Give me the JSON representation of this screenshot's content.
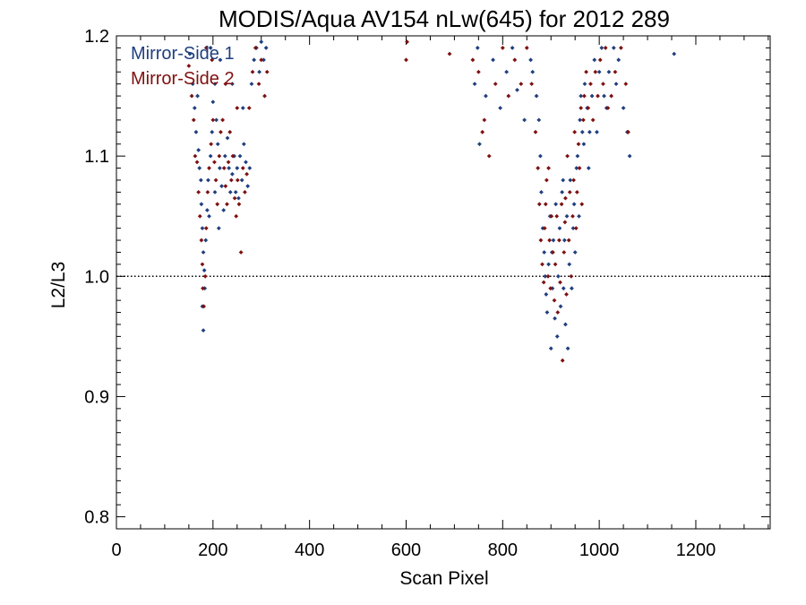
{
  "chart_data": {
    "type": "scatter",
    "title": "MODIS/Aqua AV154 nLw(645) for 2012 289",
    "xlabel": "Scan Pixel",
    "ylabel": "L2/L3",
    "xlim": [
      0,
      1354
    ],
    "ylim": [
      0.79,
      1.2
    ],
    "xticks": [
      0,
      200,
      400,
      600,
      800,
      1000,
      1200
    ],
    "xtick_labels": [
      "0",
      "200",
      "400",
      "600",
      "800",
      "1000",
      "1200"
    ],
    "yticks": [
      0.8,
      0.9,
      1.0,
      1.1,
      1.2
    ],
    "ytick_labels": [
      "0.8",
      "0.9",
      "1.0",
      "1.1",
      "1.2"
    ],
    "reference_line": 1.0,
    "legend_position": "top-left",
    "colors": {
      "ms1": "#1f3f7f",
      "ms2": "#7f1010"
    },
    "series": [
      {
        "name": "Mirror-Side 1",
        "points": [
          [
            152,
            1.185
          ],
          [
            158,
            1.16
          ],
          [
            162,
            1.14
          ],
          [
            165,
            1.12
          ],
          [
            170,
            1.105
          ],
          [
            172,
            1.09
          ],
          [
            175,
            1.08
          ],
          [
            176,
            1.06
          ],
          [
            178,
            1.04
          ],
          [
            180,
            1.02
          ],
          [
            182,
            1.005
          ],
          [
            183,
            0.99
          ],
          [
            178,
            0.975
          ],
          [
            180,
            0.955
          ],
          [
            185,
            1.03
          ],
          [
            188,
            1.055
          ],
          [
            190,
            1.08
          ],
          [
            195,
            1.1
          ],
          [
            198,
            1.12
          ],
          [
            200,
            1.145
          ],
          [
            204,
            1.16
          ],
          [
            207,
            1.13
          ],
          [
            210,
            1.11
          ],
          [
            214,
            1.09
          ],
          [
            218,
            1.075
          ],
          [
            222,
            1.055
          ],
          [
            225,
            1.1
          ],
          [
            230,
            1.115
          ],
          [
            233,
            1.09
          ],
          [
            236,
            1.07
          ],
          [
            240,
            1.085
          ],
          [
            244,
            1.1
          ],
          [
            247,
            1.07
          ],
          [
            250,
            1.09
          ],
          [
            253,
            1.065
          ],
          [
            256,
            1.1
          ],
          [
            260,
            1.08
          ],
          [
            264,
            1.11
          ],
          [
            268,
            1.095
          ],
          [
            272,
            1.075
          ],
          [
            276,
            1.09
          ],
          [
            280,
            1.16
          ],
          [
            285,
            1.18
          ],
          [
            290,
            1.19
          ],
          [
            296,
            1.17
          ],
          [
            300,
            1.195
          ],
          [
            305,
            1.18
          ],
          [
            310,
            1.19
          ],
          [
            168,
            1.15
          ],
          [
            195,
            1.19
          ],
          [
            215,
            1.18
          ],
          [
            240,
            1.16
          ],
          [
            262,
            1.14
          ],
          [
            204,
            1.07
          ],
          [
            212,
            1.04
          ],
          [
            192,
            1.05
          ],
          [
            742,
            1.16
          ],
          [
            748,
            1.19
          ],
          [
            752,
            1.11
          ],
          [
            765,
            1.15
          ],
          [
            780,
            1.18
          ],
          [
            795,
            1.14
          ],
          [
            808,
            1.17
          ],
          [
            820,
            1.19
          ],
          [
            830,
            1.155
          ],
          [
            845,
            1.13
          ],
          [
            858,
            1.18
          ],
          [
            862,
            1.17
          ],
          [
            870,
            1.15
          ],
          [
            875,
            1.13
          ],
          [
            878,
            1.1
          ],
          [
            880,
            1.07
          ],
          [
            883,
            1.04
          ],
          [
            886,
            1.02
          ],
          [
            888,
            1.0
          ],
          [
            890,
            0.985
          ],
          [
            892,
            0.97
          ],
          [
            895,
            1.01
          ],
          [
            898,
            1.05
          ],
          [
            900,
            0.94
          ],
          [
            903,
            0.99
          ],
          [
            905,
            1.03
          ],
          [
            908,
            0.965
          ],
          [
            910,
            1.06
          ],
          [
            913,
            0.95
          ],
          [
            915,
            1.0
          ],
          [
            918,
            1.04
          ],
          [
            920,
            0.975
          ],
          [
            923,
            1.07
          ],
          [
            926,
            0.99
          ],
          [
            928,
            1.03
          ],
          [
            930,
            0.96
          ],
          [
            933,
            1.05
          ],
          [
            935,
            0.94
          ],
          [
            938,
            1.01
          ],
          [
            940,
            1.08
          ],
          [
            943,
            0.99
          ],
          [
            946,
            1.04
          ],
          [
            948,
            1.06
          ],
          [
            950,
            1.02
          ],
          [
            953,
            1.09
          ],
          [
            955,
            1.1
          ],
          [
            958,
            1.05
          ],
          [
            960,
            1.13
          ],
          [
            962,
            1.15
          ],
          [
            965,
            1.12
          ],
          [
            968,
            1.11
          ],
          [
            970,
            1.16
          ],
          [
            975,
            1.14
          ],
          [
            978,
            1.09
          ],
          [
            980,
            1.12
          ],
          [
            985,
            1.15
          ],
          [
            990,
            1.18
          ],
          [
            995,
            1.12
          ],
          [
            1000,
            1.17
          ],
          [
            1005,
            1.19
          ],
          [
            1010,
            1.15
          ],
          [
            1015,
            1.14
          ],
          [
            1020,
            1.17
          ],
          [
            1030,
            1.19
          ],
          [
            1040,
            1.18
          ],
          [
            1050,
            1.14
          ],
          [
            1058,
            1.12
          ],
          [
            1063,
            1.1
          ],
          [
            1155,
            1.185
          ],
          [
            1035,
            1.16
          ],
          [
            925,
            1.08
          ],
          [
            902,
            1.02
          ]
        ]
      },
      {
        "name": "Mirror-Side 2",
        "points": [
          [
            150,
            1.175
          ],
          [
            156,
            1.15
          ],
          [
            160,
            1.13
          ],
          [
            163,
            1.1
          ],
          [
            167,
            1.095
          ],
          [
            170,
            1.07
          ],
          [
            173,
            1.05
          ],
          [
            176,
            1.03
          ],
          [
            178,
            1.01
          ],
          [
            179,
            0.99
          ],
          [
            181,
            0.975
          ],
          [
            184,
            1.0
          ],
          [
            186,
            1.04
          ],
          [
            189,
            1.07
          ],
          [
            192,
            1.09
          ],
          [
            196,
            1.11
          ],
          [
            200,
            1.13
          ],
          [
            203,
            1.095
          ],
          [
            206,
            1.08
          ],
          [
            209,
            1.06
          ],
          [
            213,
            1.1
          ],
          [
            216,
            1.12
          ],
          [
            220,
            1.13
          ],
          [
            223,
            1.09
          ],
          [
            226,
            1.075
          ],
          [
            229,
            1.06
          ],
          [
            232,
            1.095
          ],
          [
            235,
            1.12
          ],
          [
            238,
            1.08
          ],
          [
            241,
            1.1
          ],
          [
            245,
            1.065
          ],
          [
            248,
            1.05
          ],
          [
            251,
            1.08
          ],
          [
            254,
            1.06
          ],
          [
            258,
            1.02
          ],
          [
            262,
            1.09
          ],
          [
            266,
            1.07
          ],
          [
            270,
            1.085
          ],
          [
            275,
            1.14
          ],
          [
            282,
            1.17
          ],
          [
            288,
            1.19
          ],
          [
            295,
            1.16
          ],
          [
            300,
            1.18
          ],
          [
            307,
            1.15
          ],
          [
            312,
            1.17
          ],
          [
            198,
            1.18
          ],
          [
            226,
            1.16
          ],
          [
            250,
            1.14
          ],
          [
            186,
            1.19
          ],
          [
            600,
            1.18
          ],
          [
            602,
            1.195
          ],
          [
            690,
            1.185
          ],
          [
            738,
            1.18
          ],
          [
            750,
            1.17
          ],
          [
            758,
            1.12
          ],
          [
            762,
            1.13
          ],
          [
            772,
            1.1
          ],
          [
            785,
            1.16
          ],
          [
            800,
            1.19
          ],
          [
            812,
            1.15
          ],
          [
            825,
            1.18
          ],
          [
            838,
            1.16
          ],
          [
            850,
            1.19
          ],
          [
            860,
            1.16
          ],
          [
            868,
            1.12
          ],
          [
            873,
            1.09
          ],
          [
            876,
            1.06
          ],
          [
            879,
            1.03
          ],
          [
            882,
            1.01
          ],
          [
            885,
            0.995
          ],
          [
            887,
            1.04
          ],
          [
            889,
            1.06
          ],
          [
            891,
            1.08
          ],
          [
            894,
            1.0
          ],
          [
            897,
            1.03
          ],
          [
            899,
            0.99
          ],
          [
            901,
            1.05
          ],
          [
            904,
            1.02
          ],
          [
            907,
            0.98
          ],
          [
            909,
            1.01
          ],
          [
            912,
            1.05
          ],
          [
            914,
            0.97
          ],
          [
            917,
            1.03
          ],
          [
            919,
            0.995
          ],
          [
            922,
            1.06
          ],
          [
            924,
            0.93
          ],
          [
            927,
            1.02
          ],
          [
            929,
            1.045
          ],
          [
            932,
            0.985
          ],
          [
            934,
            1.1
          ],
          [
            937,
            1.03
          ],
          [
            939,
            1.07
          ],
          [
            942,
            1.0
          ],
          [
            945,
            1.05
          ],
          [
            947,
            1.08
          ],
          [
            949,
            1.12
          ],
          [
            952,
            1.04
          ],
          [
            954,
            1.07
          ],
          [
            957,
            1.11
          ],
          [
            959,
            1.09
          ],
          [
            962,
            1.14
          ],
          [
            964,
            1.06
          ],
          [
            967,
            1.13
          ],
          [
            969,
            1.15
          ],
          [
            973,
            1.17
          ],
          [
            977,
            1.14
          ],
          [
            982,
            1.16
          ],
          [
            987,
            1.13
          ],
          [
            992,
            1.17
          ],
          [
            997,
            1.15
          ],
          [
            1002,
            1.18
          ],
          [
            1008,
            1.16
          ],
          [
            1013,
            1.19
          ],
          [
            1018,
            1.14
          ],
          [
            1025,
            1.15
          ],
          [
            1033,
            1.17
          ],
          [
            1045,
            1.19
          ],
          [
            1055,
            1.16
          ],
          [
            1060,
            1.12
          ],
          [
            930,
            1.065
          ],
          [
            895,
            1.09
          ]
        ]
      }
    ]
  }
}
